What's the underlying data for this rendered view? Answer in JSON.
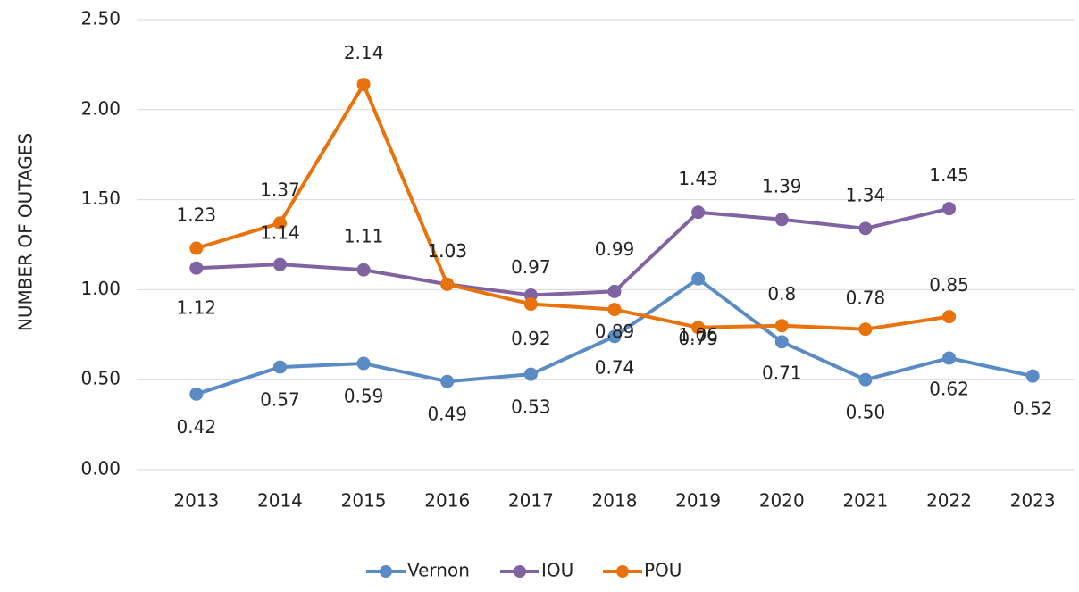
{
  "chart_data": {
    "type": "line",
    "ylabel": "NUMBER OF OUTAGES",
    "categories": [
      "2013",
      "2014",
      "2015",
      "2016",
      "2017",
      "2018",
      "2019",
      "2020",
      "2021",
      "2022",
      "2023"
    ],
    "series": [
      {
        "name": "Vernon",
        "color": "#5b8bc5",
        "values": [
          0.42,
          0.57,
          0.59,
          0.49,
          0.53,
          0.74,
          1.06,
          0.71,
          0.5,
          0.62,
          0.52
        ],
        "value_labels": [
          "0.42",
          "0.57",
          "0.59",
          "0.49",
          "0.53",
          "0.74",
          "1.06",
          "0.71",
          "0.50",
          "0.62",
          "0.52"
        ]
      },
      {
        "name": "IOU",
        "color": "#8064a2",
        "values": [
          1.12,
          1.14,
          1.11,
          1.03,
          0.97,
          0.99,
          1.43,
          1.39,
          1.34,
          1.45,
          null
        ],
        "value_labels": [
          "1.12",
          "1.14",
          "1.11",
          "1.03",
          "0.97",
          "0.99",
          "1.43",
          "1.39",
          "1.34",
          "1.45",
          null
        ]
      },
      {
        "name": "POU",
        "color": "#e8720c",
        "values": [
          1.23,
          1.37,
          2.14,
          1.03,
          0.92,
          0.89,
          0.79,
          0.8,
          0.78,
          0.85,
          null
        ],
        "value_labels": [
          "1.23",
          "1.37",
          "2.14",
          "1.03",
          "0.92",
          "0.89",
          "0.79",
          "0.8",
          "0.78",
          "0.85",
          null
        ]
      }
    ],
    "ylim": [
      0,
      2.5
    ],
    "yticks": [
      {
        "value": 0,
        "label": "0.00"
      },
      {
        "value": 0.5,
        "label": "0.50"
      },
      {
        "value": 1,
        "label": "1.00"
      },
      {
        "value": 1.5,
        "label": "1.50"
      },
      {
        "value": 2,
        "label": "2.00"
      },
      {
        "value": 2.5,
        "label": "2.50"
      }
    ],
    "grid": true,
    "legend": "bottom"
  }
}
